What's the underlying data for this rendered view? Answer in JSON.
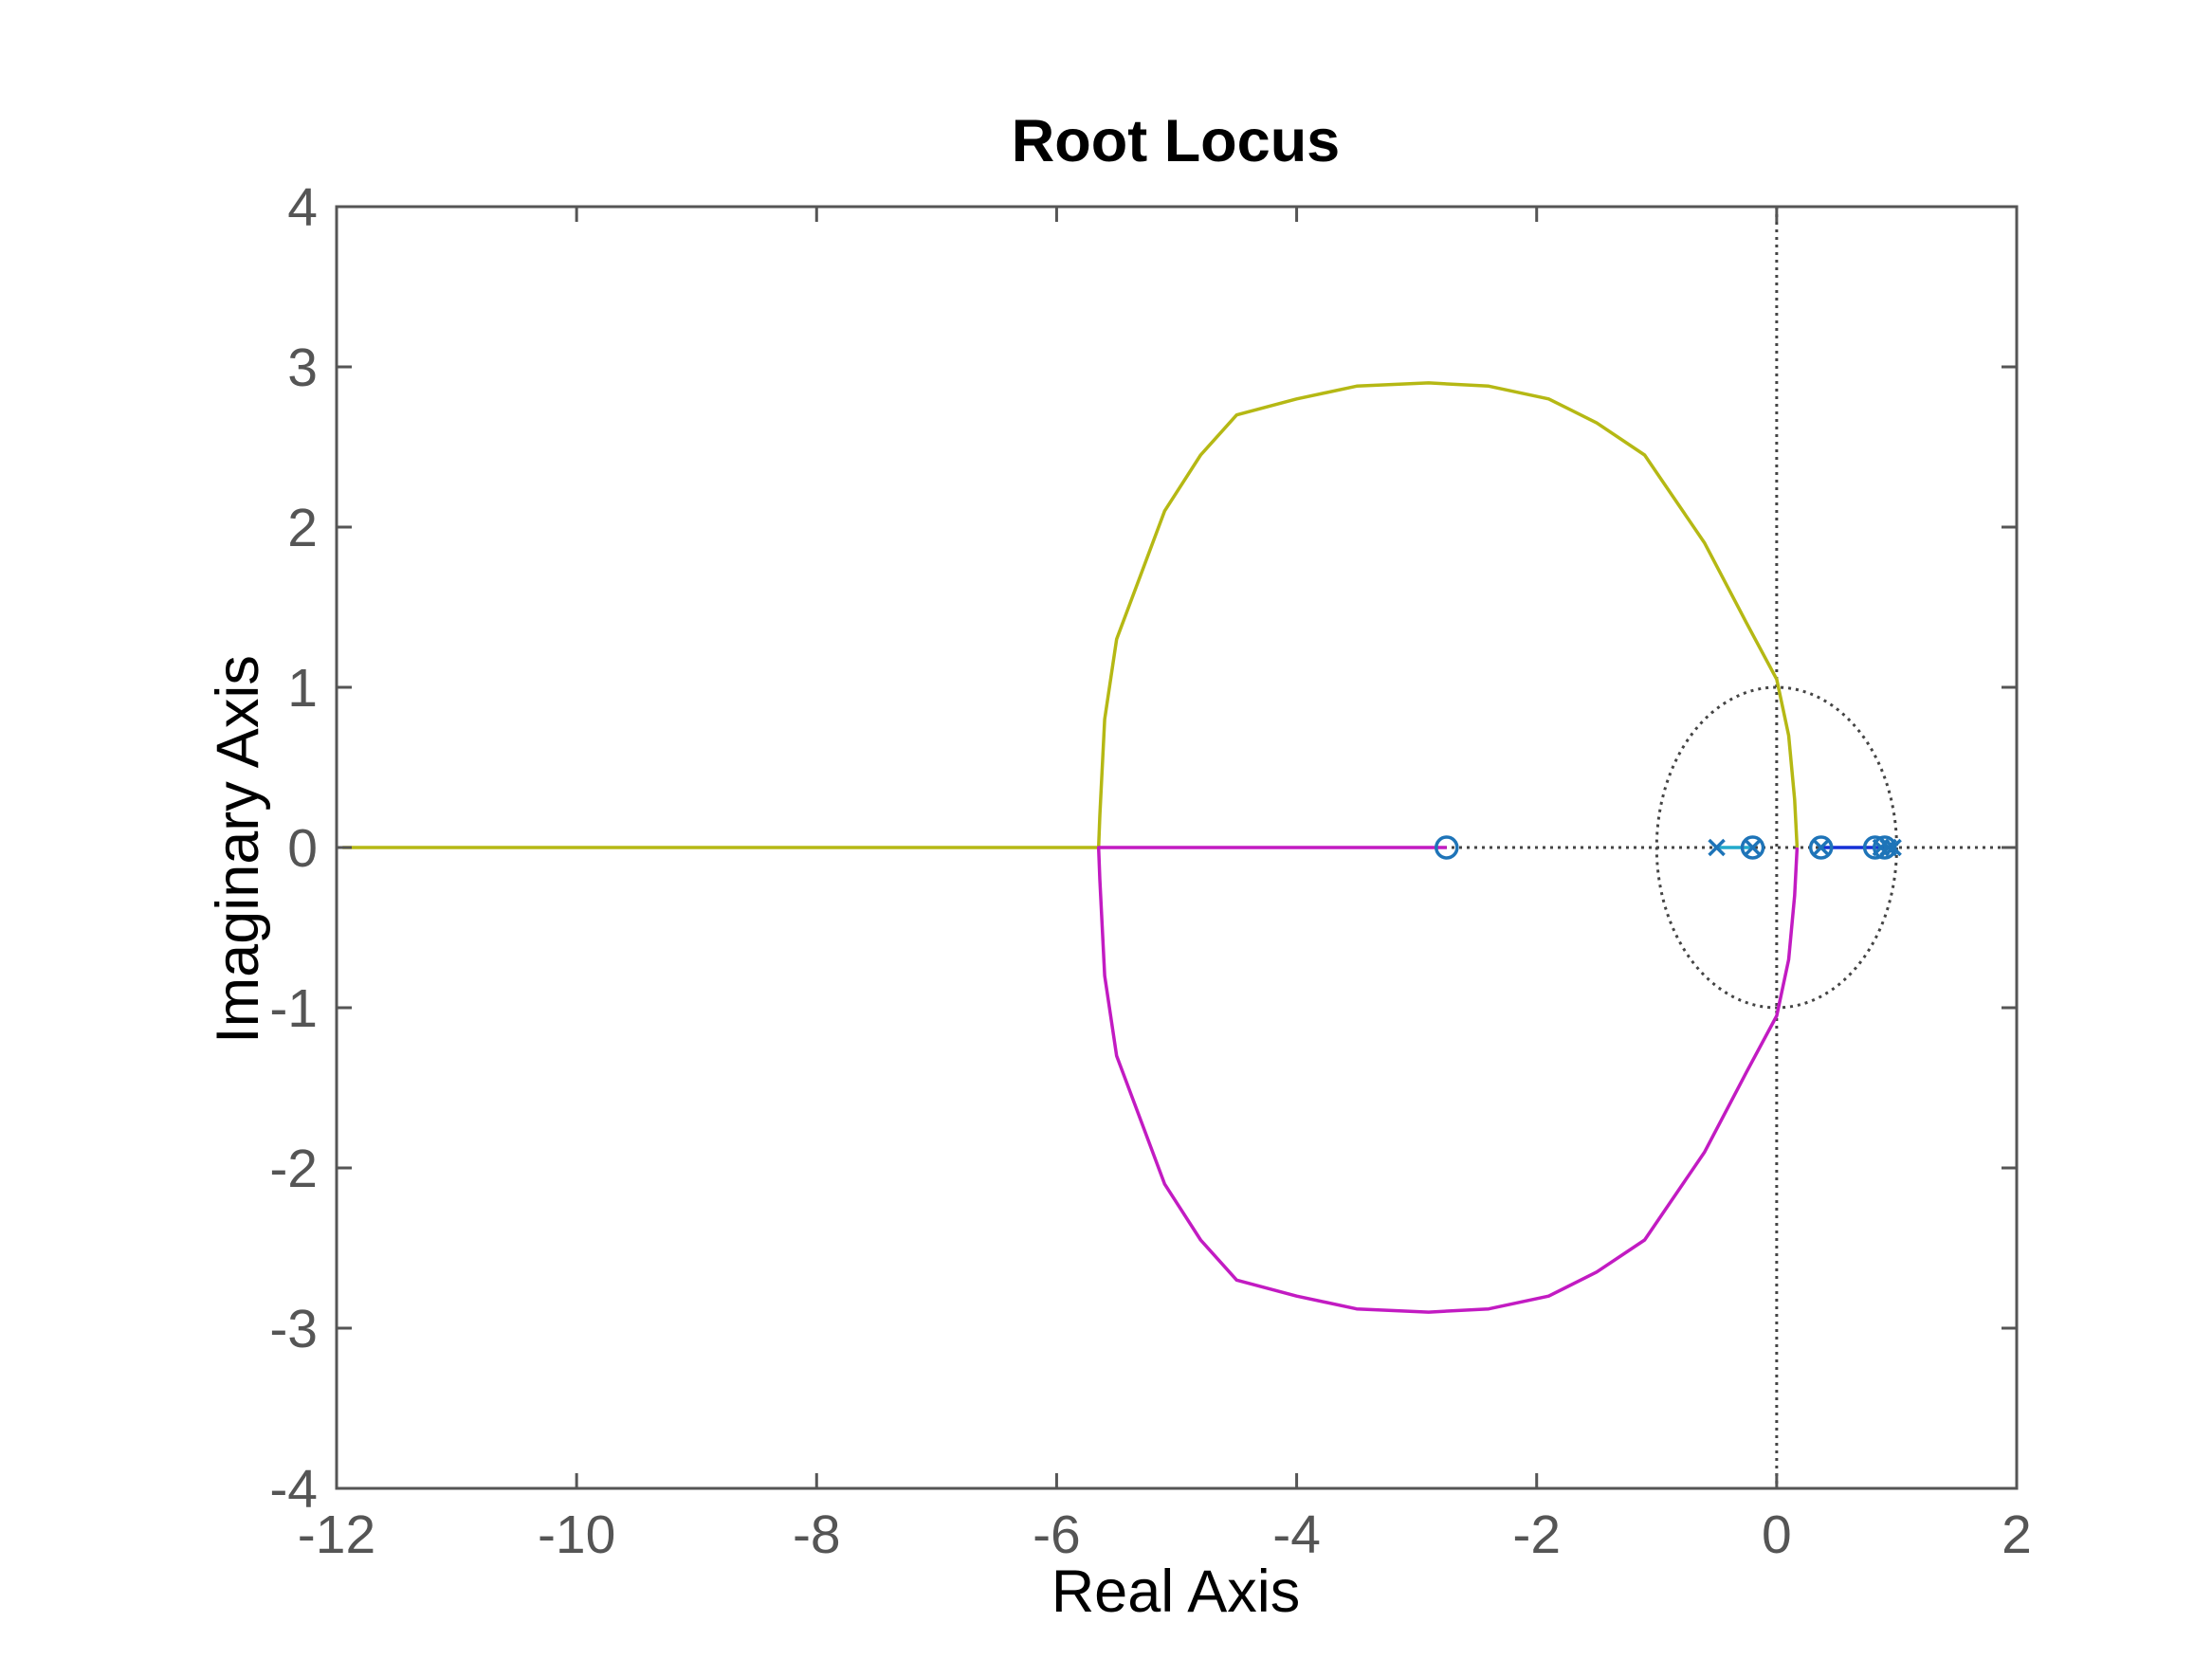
{
  "chart_data": {
    "type": "line",
    "title": "Root Locus",
    "xlabel": "Real Axis",
    "ylabel": "Imaginary Axis",
    "xlim": [
      -12,
      2
    ],
    "ylim": [
      -4,
      4
    ],
    "xticks": [
      -12,
      -10,
      -8,
      -6,
      -4,
      -2,
      0,
      2
    ],
    "yticks": [
      -4,
      -3,
      -2,
      -1,
      0,
      1,
      2,
      3,
      4
    ],
    "grid": false,
    "colors": {
      "axes": "#555555",
      "branch_upper": "#b5b814",
      "branch_lower": "#c21bc2",
      "branch_cyan": "#22aacc",
      "branch_blue": "#1530d6",
      "markers": "#1e74b8",
      "guides": "#444444"
    },
    "branches": [
      {
        "color_key": "branch_upper",
        "points": [
          [
            -11.95,
            0
          ],
          [
            -5.65,
            0
          ],
          [
            -5.64,
            0.2
          ],
          [
            -5.6,
            0.8
          ],
          [
            -5.5,
            1.3
          ],
          [
            -5.3,
            1.7
          ],
          [
            -5.1,
            2.1
          ],
          [
            -4.8,
            2.45
          ],
          [
            -4.5,
            2.7
          ],
          [
            -4.0,
            2.8
          ],
          [
            -3.5,
            2.88
          ],
          [
            -2.9,
            2.9
          ],
          [
            -2.4,
            2.88
          ],
          [
            -1.9,
            2.8
          ],
          [
            -1.5,
            2.65
          ],
          [
            -1.1,
            2.45
          ],
          [
            -0.6,
            1.9
          ],
          [
            -0.25,
            1.4
          ],
          [
            0.0,
            1.05
          ],
          [
            0.1,
            0.7
          ],
          [
            0.15,
            0.3
          ],
          [
            0.17,
            0.0
          ]
        ]
      },
      {
        "color_key": "branch_lower",
        "points": [
          [
            -2.75,
            0
          ],
          [
            -5.65,
            0
          ],
          [
            -5.64,
            -0.2
          ],
          [
            -5.6,
            -0.8
          ],
          [
            -5.5,
            -1.3
          ],
          [
            -5.3,
            -1.7
          ],
          [
            -5.1,
            -2.1
          ],
          [
            -4.8,
            -2.45
          ],
          [
            -4.5,
            -2.7
          ],
          [
            -4.0,
            -2.8
          ],
          [
            -3.5,
            -2.88
          ],
          [
            -2.9,
            -2.9
          ],
          [
            -2.4,
            -2.88
          ],
          [
            -1.9,
            -2.8
          ],
          [
            -1.5,
            -2.65
          ],
          [
            -1.1,
            -2.45
          ],
          [
            -0.6,
            -1.9
          ],
          [
            -0.25,
            -1.4
          ],
          [
            0.0,
            -1.05
          ],
          [
            0.1,
            -0.7
          ],
          [
            0.15,
            -0.3
          ],
          [
            0.17,
            0.0
          ]
        ]
      },
      {
        "color_key": "branch_cyan",
        "points": [
          [
            -0.5,
            0
          ],
          [
            -0.2,
            0
          ]
        ]
      },
      {
        "color_key": "branch_blue",
        "points": [
          [
            0.37,
            0
          ],
          [
            0.97,
            0
          ]
        ]
      }
    ],
    "poles": [
      [
        -0.5,
        0
      ],
      [
        -0.2,
        0
      ],
      [
        0.37,
        0
      ],
      [
        0.87,
        0
      ],
      [
        0.93,
        0
      ],
      [
        0.97,
        0
      ]
    ],
    "zeros": [
      [
        -2.75,
        0
      ],
      [
        -0.2,
        0
      ],
      [
        0.37,
        0
      ],
      [
        0.82,
        0
      ],
      [
        0.9,
        0
      ]
    ],
    "unit_circle": true
  }
}
